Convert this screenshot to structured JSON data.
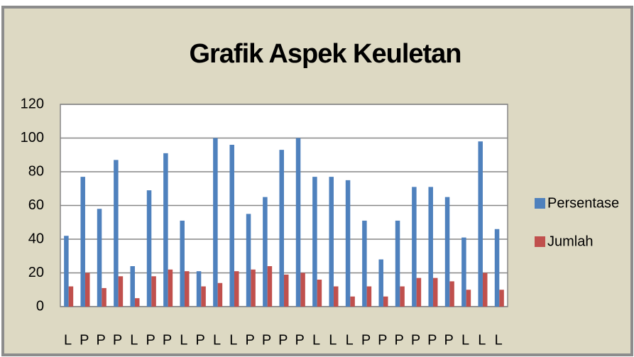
{
  "chart_data": {
    "type": "bar",
    "title": "Grafik Aspek Keuletan",
    "categories": [
      "L",
      "P",
      "P",
      "P",
      "L",
      "P",
      "P",
      "L",
      "P",
      "L",
      "L",
      "P",
      "P",
      "P",
      "P",
      "L",
      "L",
      "L",
      "P",
      "P",
      "P",
      "P",
      "P",
      "P",
      "L",
      "L",
      "L"
    ],
    "series": [
      {
        "name": "Persentase",
        "color": "#4f81bd",
        "values": [
          42,
          77,
          58,
          87,
          24,
          69,
          91,
          51,
          21,
          100,
          96,
          55,
          65,
          93,
          100,
          77,
          77,
          75,
          51,
          28,
          51,
          71,
          71,
          65,
          41,
          98,
          46
        ]
      },
      {
        "name": "Jumlah",
        "color": "#c0504d",
        "values": [
          12,
          20,
          11,
          18,
          5,
          18,
          22,
          21,
          12,
          14,
          21,
          22,
          24,
          19,
          20,
          16,
          12,
          6,
          12,
          6,
          12,
          17,
          17,
          15,
          10,
          20,
          10
        ]
      }
    ],
    "ylim": [
      0,
      120
    ],
    "yticks": [
      0,
      20,
      40,
      60,
      80,
      100,
      120
    ],
    "grid": true,
    "legend": "right"
  }
}
